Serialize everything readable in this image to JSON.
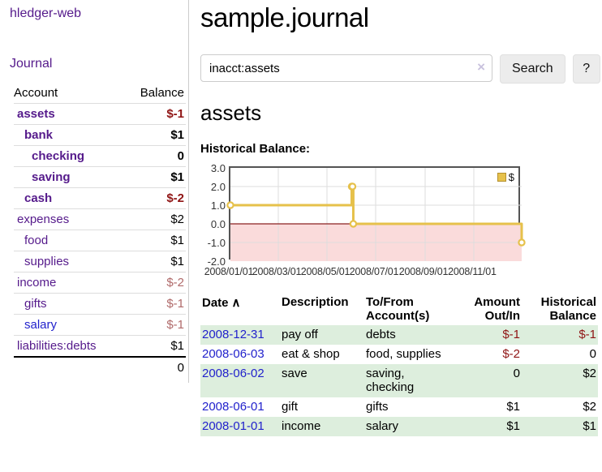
{
  "app": {
    "brand": "hledger-web",
    "nav_journal": "Journal"
  },
  "sidebar": {
    "header": {
      "account": "Account",
      "balance": "Balance"
    },
    "accounts": [
      {
        "name": "assets",
        "indent": 0,
        "balance": "$-1",
        "bold": true,
        "balance_color": "neg-strong"
      },
      {
        "name": "bank",
        "indent": 1,
        "balance": "$1",
        "bold": true
      },
      {
        "name": "checking",
        "indent": 2,
        "balance": "0",
        "bold": true
      },
      {
        "name": "saving",
        "indent": 2,
        "balance": "$1",
        "bold": true
      },
      {
        "name": "cash",
        "indent": 1,
        "balance": "$-2",
        "bold": true,
        "balance_color": "neg-strong"
      },
      {
        "name": "expenses",
        "indent": 0,
        "balance": "$2"
      },
      {
        "name": "food",
        "indent": 1,
        "balance": "$1"
      },
      {
        "name": "supplies",
        "indent": 1,
        "balance": "$1"
      },
      {
        "name": "income",
        "indent": 0,
        "balance": "$-2",
        "balance_color": "neg-soft"
      },
      {
        "name": "gifts",
        "indent": 1,
        "balance": "$-1",
        "balance_color": "neg-soft"
      },
      {
        "name": "salary",
        "indent": 1,
        "balance": "$-1",
        "balance_color": "neg-soft",
        "unvisited": true
      },
      {
        "name": "liabilities:debts",
        "indent": 0,
        "balance": "$1"
      }
    ],
    "total": "0"
  },
  "header": {
    "title": "sample.journal"
  },
  "search": {
    "value": "inacct:assets",
    "clear_icon": "×",
    "button": "Search",
    "help_button": "?"
  },
  "account_page": {
    "heading": "assets",
    "chart_label": "Historical Balance:"
  },
  "chart_data": {
    "type": "line",
    "title": "Historical Balance",
    "step": true,
    "legend": "$",
    "x_start": "2008-01-01",
    "x_end": "2008-12-31",
    "x_ticks": [
      "2008/01/01",
      "2008/03/01",
      "2008/05/01",
      "2008/07/01",
      "2008/09/01",
      "2008/11/01"
    ],
    "y_ticks": [
      "3.0",
      "2.0",
      "1.0",
      "0.0",
      "-1.0",
      "-2.0"
    ],
    "ylim": [
      -2,
      3
    ],
    "series": [
      {
        "name": "$",
        "points": [
          [
            "2008-01-01",
            1
          ],
          [
            "2008-06-01",
            2
          ],
          [
            "2008-06-02",
            2
          ],
          [
            "2008-06-03",
            0
          ],
          [
            "2008-12-31",
            -1
          ]
        ]
      }
    ],
    "colors": {
      "line": "#e6c14b",
      "marker_fill": "#ffffff",
      "negative_region": "#fadbdb",
      "zero_line": "#8b2020",
      "grid": "#dddddd",
      "border": "#545454"
    }
  },
  "register": {
    "columns": [
      {
        "key": "date",
        "label": "Date",
        "sort_icon": "∧",
        "sortable": true
      },
      {
        "key": "description",
        "label": "Description"
      },
      {
        "key": "accounts",
        "label": "To/From Account(s)"
      },
      {
        "key": "amount",
        "label": "Amount Out/In",
        "align": "right"
      },
      {
        "key": "balance",
        "label": "Historical Balance",
        "align": "right"
      }
    ],
    "rows": [
      {
        "date": "2008-12-31",
        "description": "pay off",
        "accounts": "debts",
        "amount": "$-1",
        "balance": "$-1"
      },
      {
        "date": "2008-06-03",
        "description": "eat & shop",
        "accounts": "food, supplies",
        "amount": "$-2",
        "balance": "0"
      },
      {
        "date": "2008-06-02",
        "description": "save",
        "accounts": "saving, checking",
        "amount": "0",
        "balance": "$2"
      },
      {
        "date": "2008-06-01",
        "description": "gift",
        "accounts": "gifts",
        "amount": "$1",
        "balance": "$2"
      },
      {
        "date": "2008-01-01",
        "description": "income",
        "accounts": "salary",
        "amount": "$1",
        "balance": "$1"
      }
    ]
  }
}
